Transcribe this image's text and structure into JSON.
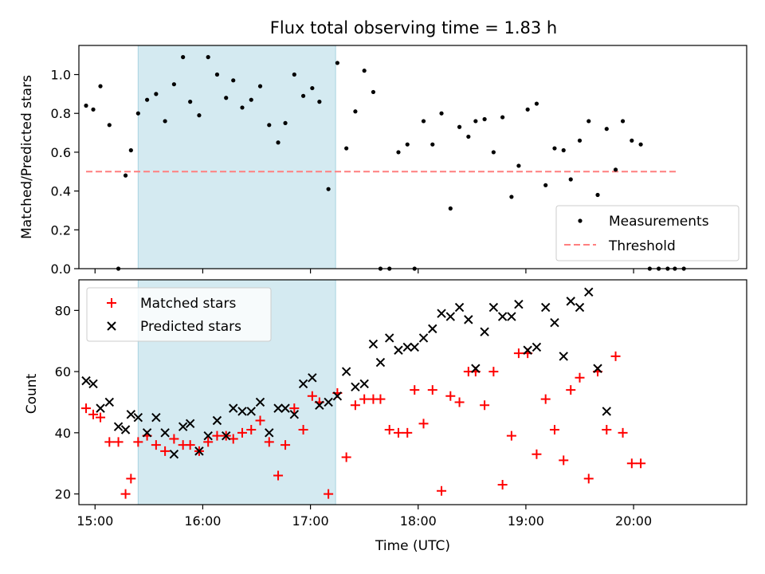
{
  "chart_data": [
    {
      "type": "scatter",
      "title": "Flux total observing time = 1.83 h",
      "ylabel": "Matched/Predicted stars",
      "xlabel": "",
      "ylim": [
        0,
        1.15
      ],
      "xlim": [
        "14:51",
        "21:03"
      ],
      "x_ticks": [
        "15:00",
        "16:00",
        "17:00",
        "18:00",
        "19:00",
        "20:00"
      ],
      "y_ticks": [
        "0.0",
        "0.2",
        "0.4",
        "0.6",
        "0.8",
        "1.0"
      ],
      "shaded_region": {
        "start": "15:24",
        "end": "17:14",
        "color": "#d4eaf1"
      },
      "legend_position": "lower right",
      "series": [
        {
          "name": "Measurements",
          "marker": "dot",
          "color": "#000000",
          "x": [
            "14:55",
            "14:59",
            "15:03",
            "15:08",
            "15:13",
            "15:17",
            "15:20",
            "15:24",
            "15:29",
            "15:34",
            "15:39",
            "15:44",
            "15:49",
            "15:53",
            "15:58",
            "16:03",
            "16:08",
            "16:13",
            "16:17",
            "16:22",
            "16:27",
            "16:32",
            "16:37",
            "16:42",
            "16:46",
            "16:51",
            "16:56",
            "17:01",
            "17:05",
            "17:10",
            "17:15",
            "17:20",
            "17:25",
            "17:30",
            "17:35",
            "17:39",
            "17:44",
            "17:49",
            "17:54",
            "17:58",
            "18:03",
            "18:08",
            "18:13",
            "18:18",
            "18:23",
            "18:28",
            "18:32",
            "18:37",
            "18:42",
            "18:47",
            "18:52",
            "18:56",
            "19:01",
            "19:06",
            "19:11",
            "19:16",
            "19:21",
            "19:25",
            "19:30",
            "19:35",
            "19:40",
            "19:45",
            "19:50",
            "19:54",
            "19:59",
            "20:04",
            "20:09",
            "20:14",
            "20:19",
            "20:23",
            "20:28"
          ],
          "values": [
            0.84,
            0.82,
            0.94,
            0.74,
            0.0,
            0.48,
            0.61,
            0.8,
            0.87,
            0.9,
            0.76,
            0.95,
            1.09,
            0.86,
            0.79,
            1.09,
            1.0,
            0.88,
            0.97,
            0.83,
            0.87,
            0.94,
            0.74,
            0.65,
            0.75,
            1.0,
            0.89,
            0.93,
            0.86,
            0.41,
            1.06,
            0.62,
            0.81,
            1.02,
            0.91,
            0.0,
            0.0,
            0.6,
            0.64,
            0.0,
            0.76,
            0.64,
            0.8,
            0.31,
            0.73,
            0.68,
            0.76,
            0.77,
            0.6,
            0.78,
            0.37,
            0.53,
            0.82,
            0.85,
            0.43,
            0.62,
            0.61,
            0.46,
            0.66,
            0.76,
            0.38,
            0.72,
            0.51,
            0.76,
            0.66,
            0.64,
            0.0,
            0.0,
            0.0,
            0.0,
            0.0
          ]
        },
        {
          "name": "Threshold",
          "line": "dashed",
          "color": "#ff7f7f",
          "x": [
            "14:55",
            "20:24"
          ],
          "values": [
            0.5,
            0.5
          ]
        }
      ]
    },
    {
      "type": "scatter",
      "title": "",
      "ylabel": "Count",
      "xlabel": "Time (UTC)",
      "ylim": [
        16.5,
        90
      ],
      "xlim": [
        "14:51",
        "21:03"
      ],
      "x_ticks": [
        "15:00",
        "16:00",
        "17:00",
        "18:00",
        "19:00",
        "20:00"
      ],
      "y_ticks": [
        "20",
        "40",
        "60",
        "80"
      ],
      "shaded_region": {
        "start": "15:24",
        "end": "17:14",
        "color": "#d4eaf1"
      },
      "legend_position": "upper left",
      "series": [
        {
          "name": "Matched stars",
          "marker": "plus",
          "color": "#ff0000",
          "x": [
            "14:55",
            "14:59",
            "15:03",
            "15:08",
            "15:13",
            "15:17",
            "15:20",
            "15:24",
            "15:29",
            "15:34",
            "15:39",
            "15:44",
            "15:49",
            "15:53",
            "15:58",
            "16:03",
            "16:08",
            "16:13",
            "16:17",
            "16:22",
            "16:27",
            "16:32",
            "16:37",
            "16:42",
            "16:46",
            "16:51",
            "16:56",
            "17:01",
            "17:05",
            "17:10",
            "17:15",
            "17:20",
            "17:25",
            "17:30",
            "17:35",
            "17:39",
            "17:44",
            "17:49",
            "17:54",
            "17:58",
            "18:03",
            "18:08",
            "18:13",
            "18:18",
            "18:23",
            "18:28",
            "18:32",
            "18:37",
            "18:42",
            "18:47",
            "18:52",
            "18:56",
            "19:01",
            "19:06",
            "19:11",
            "19:16",
            "19:21",
            "19:25",
            "19:30",
            "19:35",
            "19:40",
            "19:45",
            "19:50",
            "19:54",
            "19:59",
            "20:04",
            "20:09",
            "20:14",
            "20:19",
            "20:23",
            "20:28"
          ],
          "values": [
            48,
            46,
            45,
            37,
            37,
            20,
            25,
            37,
            39,
            36,
            34,
            38,
            36,
            36,
            34,
            37,
            39,
            39,
            38,
            40,
            41,
            44,
            37,
            26,
            36,
            48,
            41,
            52,
            50,
            20,
            53,
            32,
            49,
            51,
            51,
            51,
            41,
            40,
            40,
            54,
            43,
            54,
            21,
            52,
            50,
            60,
            60,
            49,
            60,
            23,
            39,
            66,
            66,
            33,
            51,
            41,
            31,
            54,
            58,
            25,
            60,
            41,
            65,
            40,
            30,
            30,
            null,
            null,
            null,
            null,
            null
          ]
        },
        {
          "name": "Predicted stars",
          "marker": "x",
          "color": "#000000",
          "x": [
            "14:55",
            "14:59",
            "15:03",
            "15:08",
            "15:13",
            "15:17",
            "15:20",
            "15:24",
            "15:29",
            "15:34",
            "15:39",
            "15:44",
            "15:49",
            "15:53",
            "15:58",
            "16:03",
            "16:08",
            "16:13",
            "16:17",
            "16:22",
            "16:27",
            "16:32",
            "16:37",
            "16:42",
            "16:46",
            "16:51",
            "16:56",
            "17:01",
            "17:05",
            "17:10",
            "17:15",
            "17:20",
            "17:25",
            "17:30",
            "17:35",
            "17:39",
            "17:44",
            "17:49",
            "17:54",
            "17:58",
            "18:03",
            "18:08",
            "18:13",
            "18:18",
            "18:23",
            "18:28",
            "18:32",
            "18:37",
            "18:42",
            "18:47",
            "18:52",
            "18:56",
            "19:01",
            "19:06",
            "19:11",
            "19:16",
            "19:21",
            "19:25",
            "19:30",
            "19:35",
            "19:40",
            "19:45",
            "19:50",
            "19:54",
            "19:59",
            "20:04",
            "20:09",
            "20:14",
            "20:19",
            "20:23",
            "20:28"
          ],
          "values": [
            57,
            56,
            48,
            50,
            42,
            41,
            46,
            45,
            40,
            45,
            40,
            33,
            42,
            43,
            34,
            39,
            44,
            39,
            48,
            47,
            47,
            50,
            40,
            48,
            48,
            46,
            56,
            58,
            49,
            50,
            52,
            60,
            55,
            56,
            69,
            63,
            71,
            67,
            68,
            68,
            71,
            74,
            79,
            78,
            81,
            77,
            61,
            73,
            81,
            78,
            78,
            82,
            67,
            68,
            81,
            76,
            65,
            83,
            81,
            86,
            61,
            47,
            null,
            null,
            null,
            null,
            null,
            null,
            null,
            null,
            null
          ]
        }
      ]
    }
  ]
}
